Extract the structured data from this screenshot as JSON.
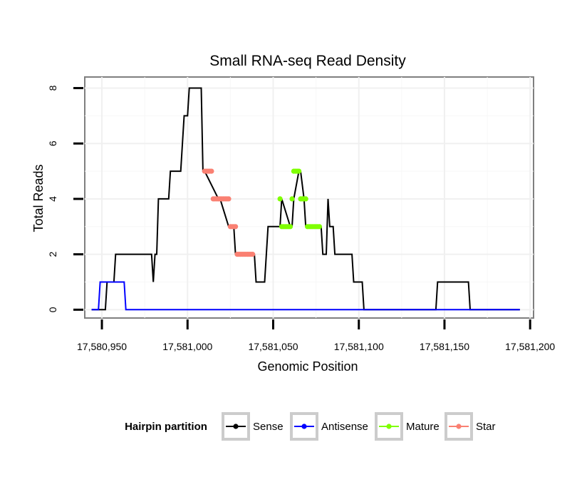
{
  "chart_data": {
    "type": "line",
    "title": "Small RNA-seq Read Density",
    "xlabel": "Genomic Position",
    "ylabel": "Total Reads",
    "xlim": [
      17580940,
      17581202
    ],
    "ylim": [
      -0.3,
      8.4
    ],
    "grid": true,
    "x_ticks": [
      {
        "value": 17580950,
        "label": "17,580,950"
      },
      {
        "value": 17581000,
        "label": "17,581,000"
      },
      {
        "value": 17581050,
        "label": "17,581,050"
      },
      {
        "value": 17581100,
        "label": "17,581,100"
      },
      {
        "value": 17581150,
        "label": "17,581,150"
      },
      {
        "value": 17581200,
        "label": "17,581,200"
      }
    ],
    "y_ticks": [
      {
        "value": 0,
        "label": "0"
      },
      {
        "value": 2,
        "label": "2"
      },
      {
        "value": 4,
        "label": "4"
      },
      {
        "value": 6,
        "label": "6"
      },
      {
        "value": 8,
        "label": "8"
      }
    ],
    "legend": {
      "title": "Hairpin partition",
      "position": "bottom",
      "entries": [
        {
          "name": "Sense",
          "color": "#000000"
        },
        {
          "name": "Antisense",
          "color": "#0000ff"
        },
        {
          "name": "Mature",
          "color": "#7fff00"
        },
        {
          "name": "Star",
          "color": "#fa8072"
        }
      ]
    },
    "series": [
      {
        "name": "Sense",
        "color": "#000000",
        "style": "line",
        "x": [
          17580944,
          17580952,
          17580953,
          17580957,
          17580958,
          17580979,
          17580980,
          17580981,
          17580982,
          17580983,
          17580989,
          17580990,
          17580996,
          17580997,
          17580998,
          17581000,
          17581001,
          17581008,
          17581009,
          17581010,
          17581018,
          17581019,
          17581024,
          17581025,
          17581027,
          17581028,
          17581039,
          17581040,
          17581045,
          17581046,
          17581047,
          17581054,
          17581055,
          17581060,
          17581061,
          17581062,
          17581065,
          17581066,
          17581068,
          17581069,
          17581078,
          17581079,
          17581081,
          17581082,
          17581083,
          17581085,
          17581086,
          17581096,
          17581097,
          17581098,
          17581099,
          17581102,
          17581103,
          17581145,
          17581146,
          17581164,
          17581165,
          17581194
        ],
        "y": [
          0,
          0,
          1,
          1,
          2,
          2,
          1,
          2,
          2,
          4,
          4,
          5,
          5,
          6,
          7,
          7,
          8,
          8,
          5,
          5,
          4,
          4,
          3,
          3,
          3,
          2,
          2,
          1,
          1,
          2,
          3,
          3,
          4,
          3,
          3,
          4,
          5,
          5,
          4,
          3,
          3,
          2,
          2,
          4,
          3,
          3,
          2,
          2,
          1,
          1,
          1,
          1,
          0,
          0,
          1,
          1,
          0,
          0
        ]
      },
      {
        "name": "Antisense",
        "color": "#0000ff",
        "style": "line",
        "x": [
          17580944,
          17580948,
          17580949,
          17580963,
          17580964,
          17581194
        ],
        "y": [
          0,
          0,
          1,
          1,
          0,
          0
        ]
      },
      {
        "name": "Mature",
        "color": "#7fff00",
        "style": "points",
        "x": [
          17581054,
          17581055,
          17581056,
          17581057,
          17581058,
          17581059,
          17581060,
          17581061,
          17581062,
          17581063,
          17581064,
          17581065,
          17581066,
          17581067,
          17581068,
          17581069,
          17581070,
          17581071,
          17581072,
          17581073,
          17581074,
          17581075,
          17581076,
          17581077
        ],
        "y": [
          4,
          3,
          3,
          3,
          3,
          3,
          3,
          4,
          5,
          5,
          5,
          5,
          4,
          4,
          4,
          4,
          3,
          3,
          3,
          3,
          3,
          3,
          3,
          3
        ]
      },
      {
        "name": "Star",
        "color": "#fa8072",
        "style": "points",
        "x": [
          17581010,
          17581011,
          17581012,
          17581013,
          17581014,
          17581015,
          17581016,
          17581017,
          17581018,
          17581019,
          17581020,
          17581021,
          17581022,
          17581023,
          17581024,
          17581025,
          17581026,
          17581027,
          17581028,
          17581029,
          17581030,
          17581031,
          17581032,
          17581033,
          17581034,
          17581035,
          17581036,
          17581037,
          17581038
        ],
        "y": [
          5,
          5,
          5,
          5,
          5,
          4,
          4,
          4,
          4,
          4,
          4,
          4,
          4,
          4,
          4,
          3,
          3,
          3,
          3,
          2,
          2,
          2,
          2,
          2,
          2,
          2,
          2,
          2,
          2
        ]
      }
    ]
  }
}
